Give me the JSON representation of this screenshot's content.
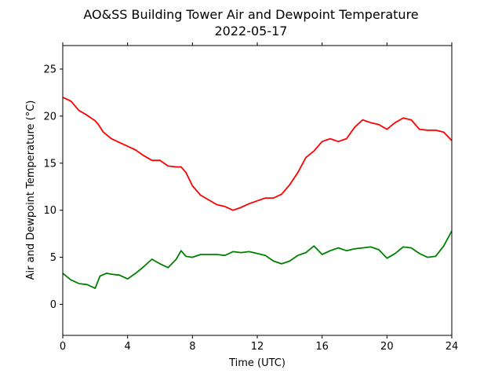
{
  "chart_data": {
    "type": "line",
    "title": "AO&SS Building Tower Air and Dewpoint Temperature",
    "subtitle": "2022-05-17",
    "xlabel": "Time (UTC)",
    "ylabel": "Air and Dewpoint Temperature (°C)",
    "xlim": [
      0,
      24
    ],
    "ylim": [
      -3.3,
      27.5
    ],
    "xticks": [
      0,
      4,
      8,
      12,
      16,
      20,
      24
    ],
    "yticks": [
      0,
      5,
      10,
      15,
      20,
      25
    ],
    "grid": false,
    "legend": "none",
    "series": [
      {
        "color": "#ff0000",
        "x": [
          0,
          0.5,
          1,
          1.5,
          2,
          2.2,
          2.5,
          3,
          3.5,
          4,
          4.5,
          5,
          5.5,
          6,
          6.5,
          7,
          7.3,
          7.6,
          8,
          8.5,
          9,
          9.5,
          10,
          10.5,
          11,
          11.5,
          12,
          12.5,
          13,
          13.5,
          14,
          14.5,
          15,
          15.5,
          16,
          16.5,
          17,
          17.5,
          18,
          18.5,
          19,
          19.5,
          20,
          20.5,
          21,
          21.5,
          22,
          22.5,
          23,
          23.5,
          24
        ],
        "y": [
          22.0,
          21.6,
          20.6,
          20.1,
          19.5,
          19.1,
          18.3,
          17.6,
          17.2,
          16.8,
          16.4,
          15.8,
          15.3,
          15.3,
          14.7,
          14.6,
          14.6,
          14.0,
          12.6,
          11.6,
          11.1,
          10.6,
          10.4,
          10.0,
          10.3,
          10.7,
          11.0,
          11.3,
          11.3,
          11.7,
          12.7,
          14.0,
          15.6,
          16.3,
          17.3,
          17.6,
          17.3,
          17.6,
          18.8,
          19.6,
          19.3,
          19.1,
          18.6,
          19.3,
          19.8,
          19.6,
          18.6,
          18.5,
          18.5,
          18.3,
          17.4
        ]
      },
      {
        "color": "#008000",
        "x": [
          0,
          0.5,
          1,
          1.5,
          2,
          2.3,
          2.7,
          3,
          3.5,
          4,
          4.5,
          5,
          5.5,
          6,
          6.5,
          7,
          7.3,
          7.6,
          8,
          8.5,
          9,
          9.5,
          10,
          10.5,
          11,
          11.5,
          12,
          12.5,
          13,
          13.5,
          14,
          14.5,
          15,
          15.5,
          16,
          16.5,
          17,
          17.5,
          18,
          18.5,
          19,
          19.5,
          20,
          20.5,
          21,
          21.5,
          22,
          22.5,
          23,
          23.5,
          24
        ],
        "y": [
          3.3,
          2.6,
          2.2,
          2.1,
          1.7,
          3.0,
          3.3,
          3.2,
          3.1,
          2.7,
          3.3,
          4.0,
          4.8,
          4.3,
          3.9,
          4.8,
          5.7,
          5.1,
          5.0,
          5.3,
          5.3,
          5.3,
          5.2,
          5.6,
          5.5,
          5.6,
          5.4,
          5.2,
          4.6,
          4.3,
          4.6,
          5.2,
          5.5,
          6.2,
          5.3,
          5.7,
          6.0,
          5.7,
          5.9,
          6.0,
          6.1,
          5.8,
          4.9,
          5.4,
          6.1,
          6.0,
          5.4,
          5.0,
          5.1,
          6.2,
          7.8
        ]
      }
    ]
  }
}
